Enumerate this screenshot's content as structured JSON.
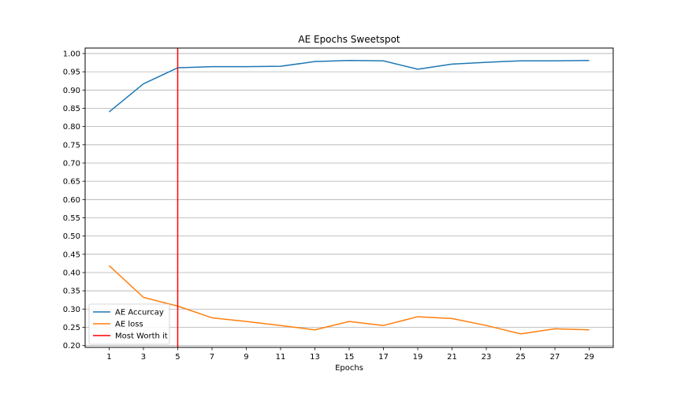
{
  "chart_data": {
    "type": "line",
    "title": "AE Epochs Sweetspot",
    "xlabel": "Epochs",
    "ylabel": "",
    "x": [
      1,
      3,
      5,
      7,
      9,
      11,
      13,
      15,
      17,
      19,
      21,
      23,
      25,
      27,
      29
    ],
    "xlim": [
      -0.4,
      30.4
    ],
    "ylim": [
      0.195,
      1.015
    ],
    "xticks": [
      1,
      3,
      5,
      7,
      9,
      11,
      13,
      15,
      17,
      19,
      21,
      23,
      25,
      27,
      29
    ],
    "yticks": [
      0.2,
      0.25,
      0.3,
      0.35,
      0.4,
      0.45,
      0.5,
      0.55,
      0.6,
      0.65,
      0.7,
      0.75,
      0.8,
      0.85,
      0.9,
      0.95,
      1.0
    ],
    "grid": "horizontal",
    "legend_position": "lower-left",
    "series": [
      {
        "name": "AE Accurcay",
        "color": "#1f77b4",
        "values": [
          0.84,
          0.917,
          0.961,
          0.964,
          0.964,
          0.965,
          0.978,
          0.981,
          0.98,
          0.957,
          0.971,
          0.976,
          0.98,
          0.98,
          0.981
        ]
      },
      {
        "name": "AE loss",
        "color": "#ff7f0e",
        "values": [
          0.419,
          0.332,
          0.308,
          0.276,
          0.266,
          0.255,
          0.243,
          0.266,
          0.255,
          0.279,
          0.274,
          0.255,
          0.232,
          0.246,
          0.243
        ]
      }
    ],
    "vlines": [
      {
        "name": "Most Worth it",
        "x": 5,
        "color": "#ff0000"
      }
    ]
  }
}
